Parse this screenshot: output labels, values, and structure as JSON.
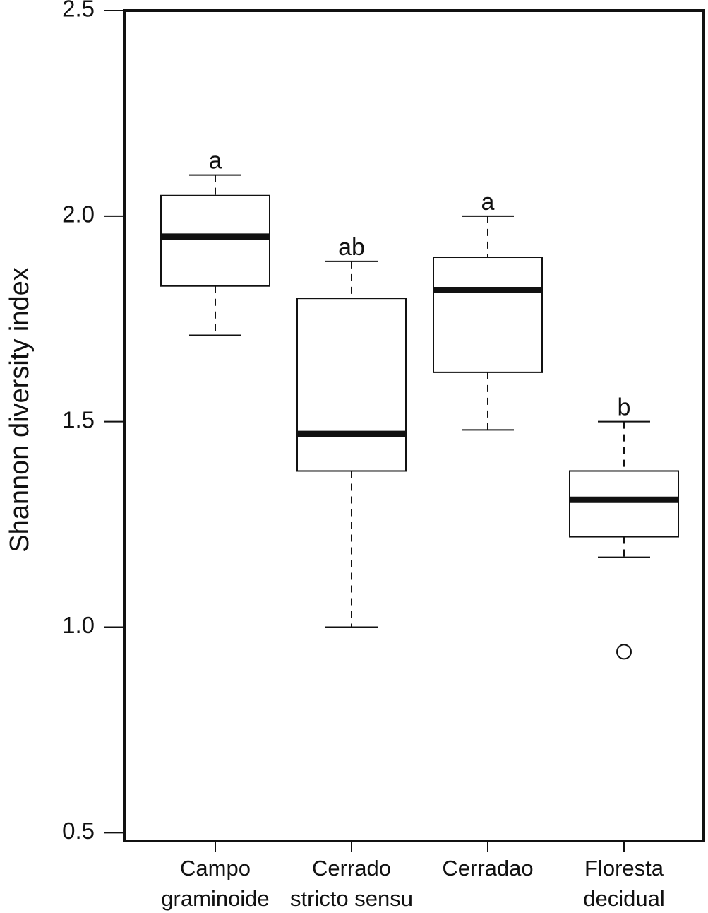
{
  "chart_data": {
    "type": "boxplot",
    "ylabel": "Shannon diversity index",
    "categories": [
      [
        "Campo",
        "graminoide"
      ],
      [
        "Cerrado",
        "stricto sensu"
      ],
      [
        "Cerradao"
      ],
      [
        "Floresta",
        "decidual"
      ]
    ],
    "boxes": [
      {
        "whisker_low": 1.71,
        "q1": 1.83,
        "median": 1.95,
        "q3": 2.05,
        "whisker_high": 2.1,
        "outliers": []
      },
      {
        "whisker_low": 1.0,
        "q1": 1.38,
        "median": 1.47,
        "q3": 1.8,
        "whisker_high": 1.89,
        "outliers": []
      },
      {
        "whisker_low": 1.48,
        "q1": 1.62,
        "median": 1.82,
        "q3": 1.9,
        "whisker_high": 2.0,
        "outliers": []
      },
      {
        "whisker_low": 1.17,
        "q1": 1.22,
        "median": 1.31,
        "q3": 1.38,
        "whisker_high": 1.5,
        "outliers": [
          0.94
        ]
      }
    ],
    "annotations": [
      "a",
      "ab",
      "a",
      "b"
    ],
    "ylim": [
      0.48,
      2.5
    ],
    "yticks": [
      0.5,
      {
        "value": 1,
        "label": "1.0"
      },
      1.5,
      {
        "value": 2,
        "label": "2.0"
      },
      2.5
    ],
    "color": "#111111"
  }
}
